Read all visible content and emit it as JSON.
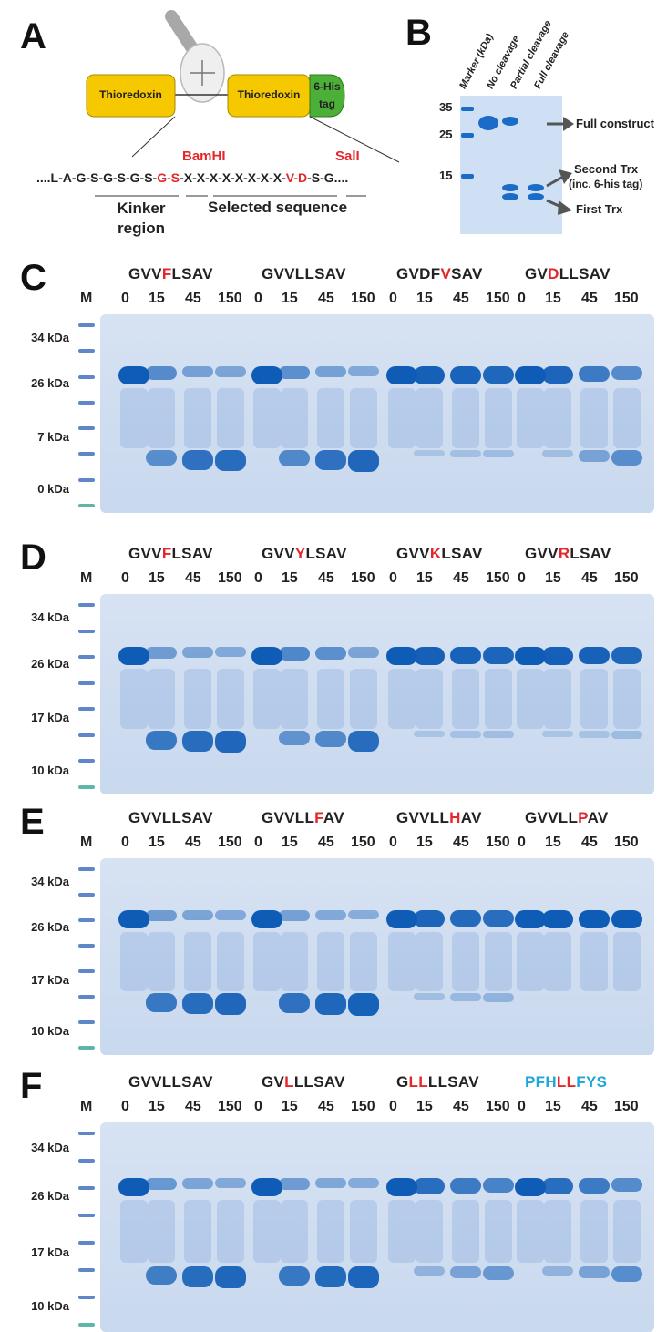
{
  "panel_a": {
    "letter": "A",
    "trx1_label": "Thioredoxin",
    "trx2_label": "Thioredoxin",
    "tag_label": "6-His tag",
    "bamhi_label": "BamHI",
    "sali_label": "SalI",
    "seq_prefix": "....L-A-G-S-G-S-G-S-",
    "seq_bamhi": "G-S",
    "seq_mid": "-X-X-X-X-X-X-X-X-",
    "seq_sali": "V-D",
    "seq_suffix": "-S-G....",
    "linker_label_1": "Kinker",
    "linker_label_2": "region",
    "selected_label": "Selected sequence"
  },
  "panel_b": {
    "letter": "B",
    "lane_labels": [
      "Marker (kDa)",
      "No cleavage",
      "Partial cleavage",
      "Full cleavage"
    ],
    "markers": [
      "35",
      "25",
      "15"
    ],
    "arrow_labels": [
      "Full construct",
      "Second Trx",
      "(inc. 6-his tag)",
      "First Trx"
    ]
  },
  "gels": [
    {
      "letter": "C",
      "groups": [
        {
          "parts": [
            [
              "GVV",
              ""
            ],
            [
              "F",
              "mut"
            ],
            [
              "LSAV",
              ""
            ]
          ]
        },
        {
          "parts": [
            [
              "GVVLLSAV",
              ""
            ]
          ]
        },
        {
          "parts": [
            [
              "GVDF",
              ""
            ],
            [
              "V",
              "mut"
            ],
            [
              "SAV",
              ""
            ]
          ]
        },
        {
          "parts": [
            [
              "GV",
              ""
            ],
            [
              "D",
              "mut"
            ],
            [
              "LLSAV",
              ""
            ]
          ]
        }
      ],
      "marker_label": "M",
      "kda": [
        "34 kDa",
        "26 kDa",
        "7 kDa",
        "0 kDa"
      ],
      "cleavage": [
        [
          0,
          0.55,
          0.8,
          0.85
        ],
        [
          0,
          0.6,
          0.8,
          0.9
        ],
        [
          0,
          0.05,
          0.08,
          0.12
        ],
        [
          0,
          0.1,
          0.35,
          0.55
        ]
      ]
    },
    {
      "letter": "D",
      "groups": [
        {
          "parts": [
            [
              "GVV",
              ""
            ],
            [
              "F",
              "mut"
            ],
            [
              "LSAV",
              ""
            ]
          ]
        },
        {
          "parts": [
            [
              "GVV",
              ""
            ],
            [
              "Y",
              "mut"
            ],
            [
              "LSAV",
              ""
            ]
          ]
        },
        {
          "parts": [
            [
              "GVV",
              ""
            ],
            [
              "K",
              "mut"
            ],
            [
              "LSAV",
              ""
            ]
          ]
        },
        {
          "parts": [
            [
              "GVV",
              ""
            ],
            [
              "R",
              "mut"
            ],
            [
              "LSAV",
              ""
            ]
          ]
        }
      ],
      "marker_label": "M",
      "kda": [
        "34 kDa",
        "26 kDa",
        "17 kDa",
        "10 kDa"
      ],
      "cleavage": [
        [
          0,
          0.75,
          0.85,
          0.9
        ],
        [
          0,
          0.5,
          0.6,
          0.85
        ],
        [
          0,
          0.05,
          0.07,
          0.1
        ],
        [
          0,
          0.04,
          0.06,
          0.12
        ]
      ]
    },
    {
      "letter": "E",
      "groups": [
        {
          "parts": [
            [
              "GVVLLSAV",
              ""
            ]
          ]
        },
        {
          "parts": [
            [
              "GVVLL",
              ""
            ],
            [
              "F",
              "mut"
            ],
            [
              "AV",
              ""
            ]
          ]
        },
        {
          "parts": [
            [
              "GVVLL",
              ""
            ],
            [
              "H",
              "mut"
            ],
            [
              "AV",
              ""
            ]
          ]
        },
        {
          "parts": [
            [
              "GVVLL",
              ""
            ],
            [
              "P",
              "mut"
            ],
            [
              "AV",
              ""
            ]
          ]
        }
      ],
      "marker_label": "M",
      "kda": [
        "34 kDa",
        "26 kDa",
        "17 kDa",
        "10 kDa"
      ],
      "cleavage": [
        [
          0,
          0.75,
          0.85,
          0.9
        ],
        [
          0,
          0.8,
          0.9,
          0.95
        ],
        [
          0,
          0.1,
          0.15,
          0.2
        ],
        [
          0,
          0,
          0,
          0
        ]
      ]
    },
    {
      "letter": "F",
      "groups": [
        {
          "parts": [
            [
              "GVVLLSAV",
              ""
            ]
          ]
        },
        {
          "parts": [
            [
              "GV",
              ""
            ],
            [
              "L",
              "mut"
            ],
            [
              "LLSAV",
              ""
            ]
          ]
        },
        {
          "parts": [
            [
              "G",
              ""
            ],
            [
              "LL",
              "mut"
            ],
            [
              "LLSAV",
              ""
            ]
          ]
        },
        {
          "parts": [
            [
              "PFH",
              "cyan"
            ],
            [
              "LL",
              "mut"
            ],
            [
              "FYS",
              "cyan"
            ]
          ]
        }
      ],
      "marker_label": "M",
      "kda": [
        "34 kDa",
        "26 kDa",
        "17 kDa",
        "10 kDa"
      ],
      "cleavage": [
        [
          0,
          0.7,
          0.85,
          0.9
        ],
        [
          0,
          0.75,
          0.88,
          0.92
        ],
        [
          0,
          0.2,
          0.35,
          0.45
        ],
        [
          0,
          0.2,
          0.35,
          0.55
        ]
      ]
    }
  ],
  "timepoints": [
    "0",
    "15",
    "45",
    "150"
  ],
  "colors": {
    "band": "#0f5cb6",
    "gel": "#d0ddf0",
    "mutation": "#e5262b",
    "highlight": "#1da6dd",
    "trx": "#f6c800",
    "tag": "#4caf37"
  }
}
